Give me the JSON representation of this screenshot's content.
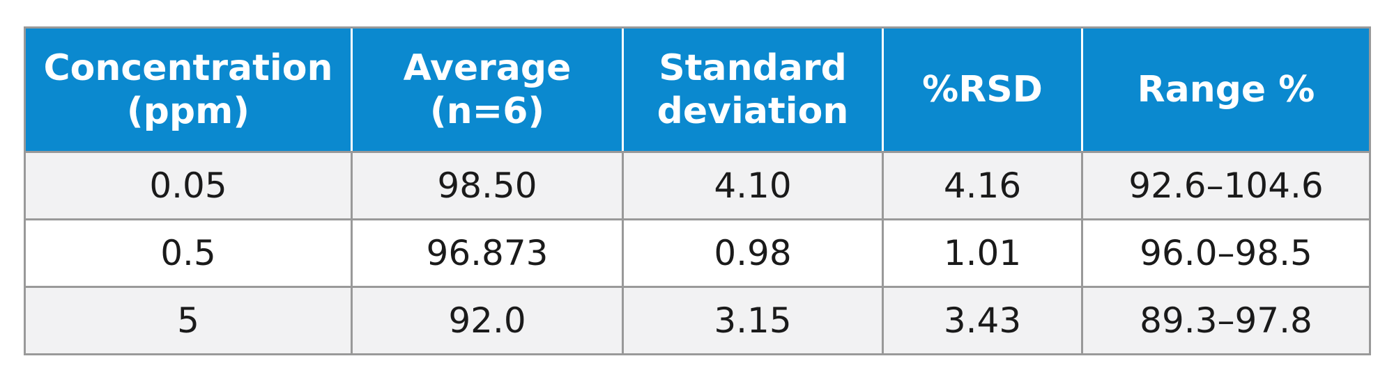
{
  "table": {
    "header": [
      [
        "Concentration",
        "(ppm)"
      ],
      [
        "Average",
        "(n=6)"
      ],
      [
        "Standard",
        "deviation"
      ],
      [
        "%RSD"
      ],
      [
        "Range %"
      ]
    ],
    "rows": [
      [
        "0.05",
        "98.50",
        "4.10",
        "4.16",
        "92.6–104.6"
      ],
      [
        "0.5",
        "96.873",
        "0.98",
        "1.01",
        "96.0–98.5"
      ],
      [
        "5",
        "92.0",
        "3.15",
        "3.43",
        "89.3–97.8"
      ]
    ]
  }
}
